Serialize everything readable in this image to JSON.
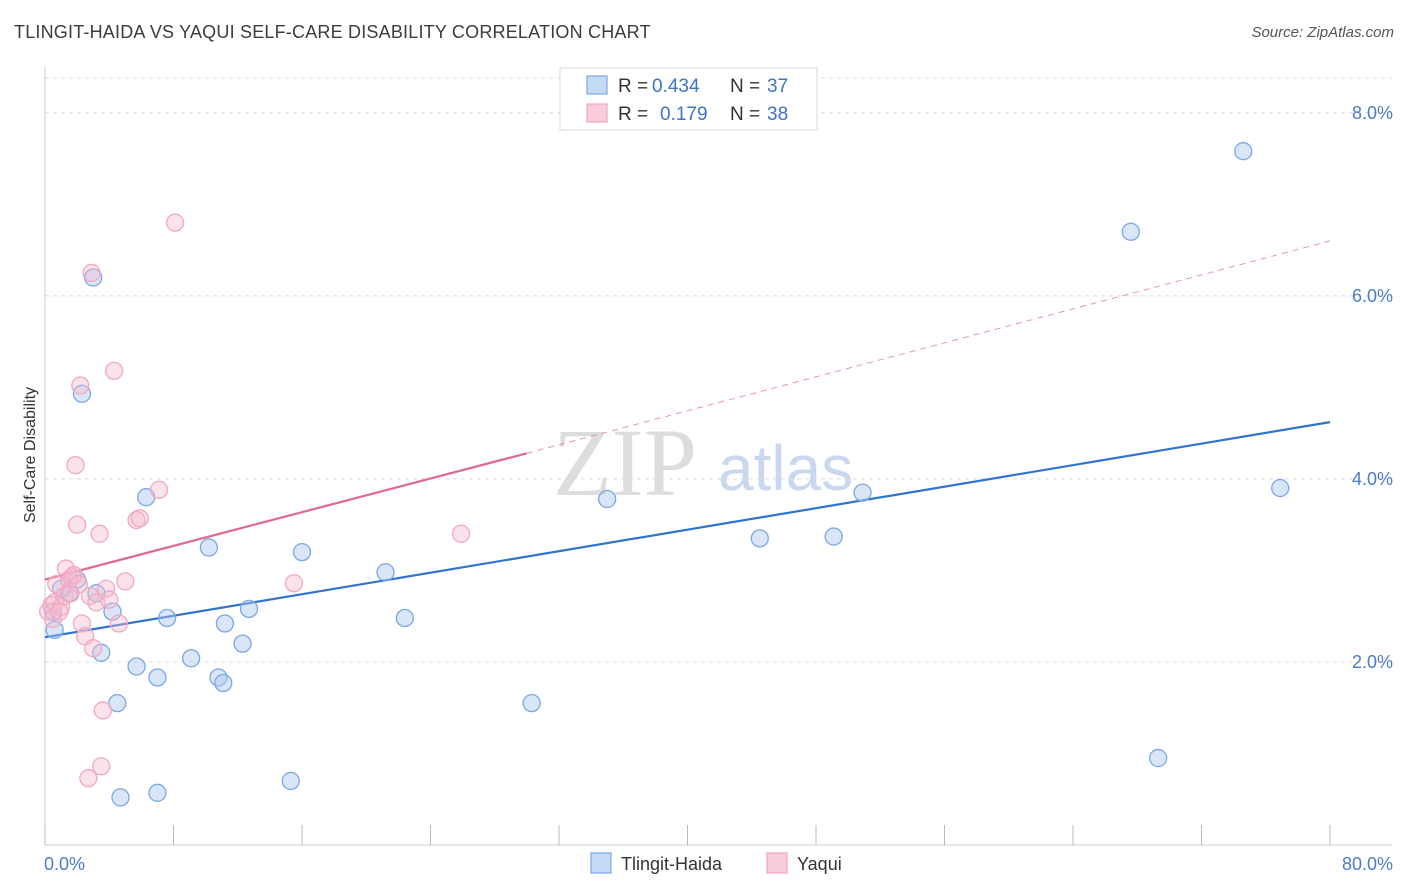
{
  "title": "TLINGIT-HAIDA VS YAQUI SELF-CARE DISABILITY CORRELATION CHART",
  "source": "Source: ZipAtlas.com",
  "watermark": {
    "part1": "ZIP",
    "part2": "atlas"
  },
  "chart_data": {
    "type": "scatter",
    "ylabel": "Self-Care Disability",
    "xlim": [
      0,
      80
    ],
    "ylim": [
      0,
      8.5
    ],
    "x_tick_labels": [
      "0.0%",
      "80.0%"
    ],
    "y_ticks": [
      2,
      4,
      6,
      8
    ],
    "y_tick_labels": [
      "2.0%",
      "4.0%",
      "6.0%",
      "8.0%"
    ],
    "legend": [
      {
        "r_label": "R =",
        "r_value": "0.434",
        "n_label": "N =",
        "n_value": "37"
      },
      {
        "r_label": "R =",
        "r_value": "0.179",
        "n_label": "N =",
        "n_value": "38"
      }
    ],
    "series": [
      {
        "name": "Tlingit-Haida",
        "color": "#7aa8e6",
        "line_color": "#2f74d0",
        "trend": {
          "x0": 0,
          "y0": 2.27,
          "x1": 80,
          "y1": 4.62
        },
        "points": [
          [
            0.5,
            2.55
          ],
          [
            0.6,
            2.35
          ],
          [
            1.5,
            2.75
          ],
          [
            2.0,
            2.9
          ],
          [
            2.3,
            4.93
          ],
          [
            3.0,
            6.2
          ],
          [
            3.2,
            2.75
          ],
          [
            3.5,
            2.1
          ],
          [
            4.2,
            2.55
          ],
          [
            4.5,
            1.55
          ],
          [
            4.7,
            0.52
          ],
          [
            5.7,
            1.95
          ],
          [
            6.3,
            3.8
          ],
          [
            7.0,
            1.83
          ],
          [
            7.0,
            0.57
          ],
          [
            7.6,
            2.48
          ],
          [
            9.1,
            2.04
          ],
          [
            10.2,
            3.25
          ],
          [
            10.8,
            1.83
          ],
          [
            11.1,
            1.77
          ],
          [
            11.2,
            2.42
          ],
          [
            12.3,
            2.2
          ],
          [
            12.7,
            2.58
          ],
          [
            15.3,
            0.7
          ],
          [
            16.0,
            3.2
          ],
          [
            21.2,
            2.98
          ],
          [
            22.4,
            2.48
          ],
          [
            30.3,
            1.55
          ],
          [
            35.0,
            3.78
          ],
          [
            44.5,
            3.35
          ],
          [
            49.1,
            3.37
          ],
          [
            50.9,
            3.85
          ],
          [
            67.6,
            6.7
          ],
          [
            69.3,
            0.95
          ],
          [
            74.6,
            7.58
          ],
          [
            76.9,
            3.9
          ],
          [
            1.0,
            2.8
          ]
        ]
      },
      {
        "name": "Yaqui",
        "color": "#f2a8c0",
        "line_color": "#e06891",
        "trend": {
          "x0": 0,
          "y0": 2.9,
          "x1": 30,
          "y1": 4.28
        },
        "trend_ext": {
          "x0": 30,
          "y0": 4.28,
          "x1": 80,
          "y1": 6.6
        },
        "points": [
          [
            0.2,
            2.55
          ],
          [
            0.4,
            2.62
          ],
          [
            0.5,
            2.47
          ],
          [
            0.6,
            2.65
          ],
          [
            0.7,
            2.85
          ],
          [
            1.0,
            2.6
          ],
          [
            1.2,
            2.72
          ],
          [
            1.3,
            3.02
          ],
          [
            1.5,
            2.9
          ],
          [
            1.6,
            2.75
          ],
          [
            1.7,
            2.93
          ],
          [
            1.8,
            2.95
          ],
          [
            1.9,
            4.15
          ],
          [
            2.0,
            3.5
          ],
          [
            2.1,
            2.85
          ],
          [
            2.2,
            5.02
          ],
          [
            2.3,
            2.42
          ],
          [
            2.5,
            2.28
          ],
          [
            2.7,
            0.73
          ],
          [
            2.8,
            2.72
          ],
          [
            2.9,
            6.25
          ],
          [
            3.0,
            2.15
          ],
          [
            3.2,
            2.65
          ],
          [
            3.4,
            3.4
          ],
          [
            3.5,
            0.86
          ],
          [
            3.6,
            1.47
          ],
          [
            3.8,
            2.8
          ],
          [
            4.0,
            2.68
          ],
          [
            4.3,
            5.18
          ],
          [
            4.6,
            2.42
          ],
          [
            5.0,
            2.88
          ],
          [
            5.7,
            3.55
          ],
          [
            5.9,
            3.57
          ],
          [
            7.1,
            3.88
          ],
          [
            8.1,
            6.8
          ],
          [
            15.5,
            2.86
          ],
          [
            25.9,
            3.4
          ],
          [
            0.9,
            2.55
          ]
        ]
      }
    ]
  }
}
